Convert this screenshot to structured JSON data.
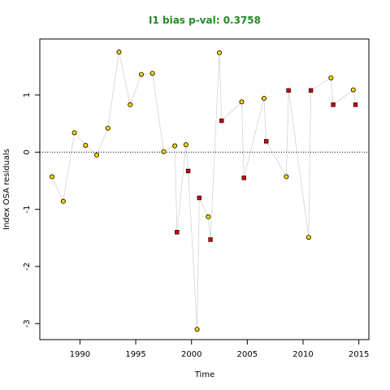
{
  "chart_data": {
    "type": "scatter",
    "title": "I1 bias p-val: 0.3758",
    "title_color": "#228B22",
    "xlabel": "Time",
    "ylabel": "Index OSA residuals",
    "xlim": [
      1986.4,
      2015.9
    ],
    "ylim": [
      -3.28,
      1.98
    ],
    "x_ticks": [
      1990,
      1995,
      2000,
      2005,
      2010,
      2015
    ],
    "x_tick_labels": [
      "1990",
      "1995",
      "2000",
      "2005",
      "2010",
      "2015"
    ],
    "y_ticks": [
      1,
      0,
      -1,
      -2,
      -3
    ],
    "y_tick_labels": [
      "1",
      "0",
      "-1",
      "-2",
      "-3"
    ],
    "reference_line": {
      "y": 0,
      "style": "dotted"
    },
    "line_color": "#d3d3d3",
    "series": [
      {
        "marker": "circle",
        "fill": "#FFD700",
        "points": [
          [
            1987.5,
            -0.43
          ],
          [
            1988.5,
            -0.86
          ],
          [
            1989.5,
            0.34
          ],
          [
            1990.5,
            0.12
          ],
          [
            1991.5,
            -0.05
          ],
          [
            1992.5,
            0.42
          ],
          [
            1993.5,
            1.75
          ],
          [
            1994.5,
            0.83
          ],
          [
            1995.5,
            1.36
          ],
          [
            1996.5,
            1.38
          ],
          [
            1997.5,
            0.01
          ],
          [
            1998.5,
            0.11
          ],
          [
            1999.5,
            0.13
          ],
          [
            2000.5,
            -3.1
          ],
          [
            2001.5,
            -1.13
          ],
          [
            2002.5,
            1.74
          ],
          [
            2004.5,
            0.88
          ],
          [
            2006.5,
            0.94
          ],
          [
            2008.5,
            -0.43
          ],
          [
            2010.5,
            -1.49
          ],
          [
            2012.5,
            1.3
          ],
          [
            2014.5,
            1.09
          ]
        ]
      },
      {
        "marker": "square",
        "fill": "#CC0000",
        "points": [
          [
            1998.7,
            -1.4
          ],
          [
            1999.7,
            -0.33
          ],
          [
            2000.7,
            -0.8
          ],
          [
            2001.7,
            -1.53
          ],
          [
            2002.7,
            0.55
          ],
          [
            2004.7,
            -0.45
          ],
          [
            2006.7,
            0.19
          ],
          [
            2008.7,
            1.08
          ],
          [
            2010.7,
            1.08
          ],
          [
            2012.7,
            0.83
          ],
          [
            2014.7,
            0.83
          ]
        ]
      }
    ]
  }
}
